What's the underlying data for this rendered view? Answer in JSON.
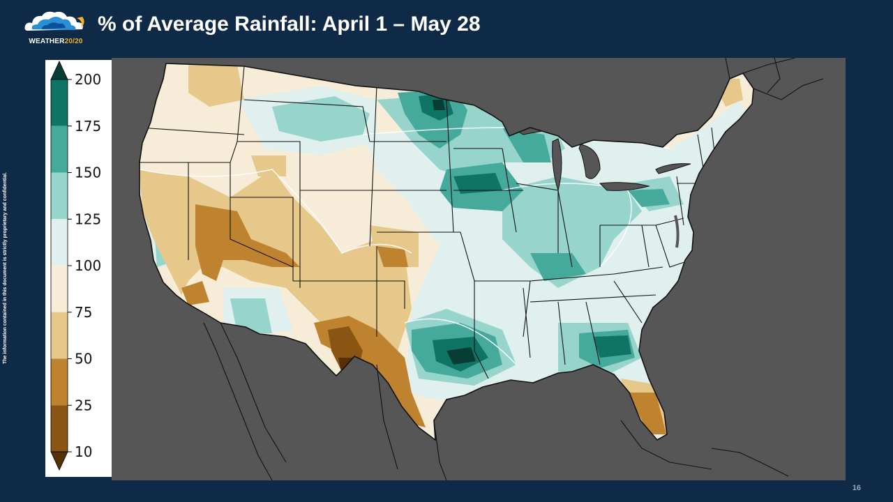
{
  "header": {
    "logo_word": "WEATHER",
    "logo_num": "20/20",
    "title": "% of Average Rainfall: April 1 – May 28"
  },
  "side_note": "The information contained in this document is strictly proprietary and confidential.",
  "page_number": "16",
  "colors": {
    "background": "#0f2a47",
    "map_background": "#565656",
    "logo_accent": "#f3b32d"
  },
  "legend": {
    "ticks": [
      "200",
      "175",
      "150",
      "125",
      "100",
      "75",
      "50",
      "25",
      "10"
    ],
    "bins": [
      {
        "from": 10,
        "to": 25,
        "color": "#8a5512"
      },
      {
        "from": 25,
        "to": 50,
        "color": "#bf8330"
      },
      {
        "from": 50,
        "to": 75,
        "color": "#e5c88a"
      },
      {
        "from": 75,
        "to": 100,
        "color": "#f6ecd8"
      },
      {
        "from": 100,
        "to": 125,
        "color": "#dff0ee"
      },
      {
        "from": 125,
        "to": 150,
        "color": "#97d5cc"
      },
      {
        "from": 150,
        "to": 175,
        "color": "#45a99c"
      },
      {
        "from": 175,
        "to": 200,
        "color": "#0f7365"
      }
    ],
    "under_color": "#553105",
    "over_color": "#073d33"
  }
}
